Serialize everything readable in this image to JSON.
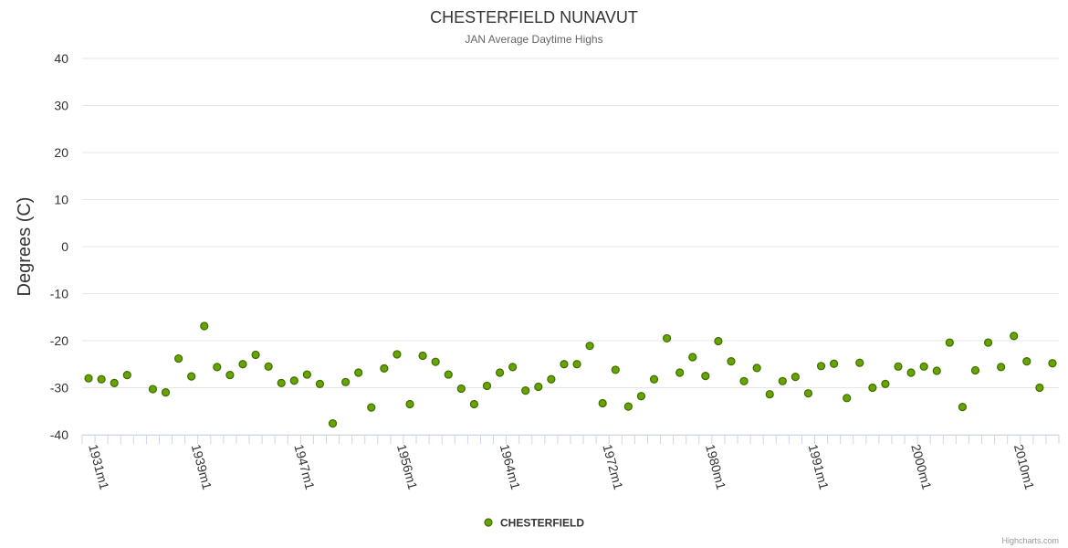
{
  "chart_data": {
    "type": "scatter",
    "title": "CHESTERFIELD NUNAVUT",
    "subtitle": "JAN Average Daytime Highs",
    "xlabel": "",
    "ylabel": "Degrees (C)",
    "ylim": [
      -40,
      40
    ],
    "yticks": [
      -40,
      -30,
      -20,
      -10,
      0,
      10,
      20,
      30,
      40
    ],
    "grid": true,
    "legend_position": "bottom-center",
    "credit": "Highcharts.com",
    "x_tick_labels": [
      {
        "label": "1931m1",
        "index": 0
      },
      {
        "label": "1939m1",
        "index": 8
      },
      {
        "label": "1947m1",
        "index": 16
      },
      {
        "label": "1956m1",
        "index": 24
      },
      {
        "label": "1964m1",
        "index": 32
      },
      {
        "label": "1972m1",
        "index": 40
      },
      {
        "label": "1980m1",
        "index": 48
      },
      {
        "label": "1991m1",
        "index": 56
      },
      {
        "label": "2000m1",
        "index": 64
      },
      {
        "label": "2010m1",
        "index": 72
      }
    ],
    "category_count": 76,
    "series": [
      {
        "name": "CHESTERFIELD",
        "color": "#66a500",
        "border_color": "#3d6b00",
        "points": [
          [
            0,
            -28.0
          ],
          [
            1,
            -28.2
          ],
          [
            2,
            -29.0
          ],
          [
            3,
            -27.3
          ],
          [
            5,
            -30.3
          ],
          [
            6,
            -31.0
          ],
          [
            7,
            -23.8
          ],
          [
            8,
            -27.6
          ],
          [
            9,
            -16.9
          ],
          [
            10,
            -25.6
          ],
          [
            11,
            -27.3
          ],
          [
            12,
            -25.0
          ],
          [
            13,
            -23.0
          ],
          [
            14,
            -25.5
          ],
          [
            15,
            -29.0
          ],
          [
            16,
            -28.5
          ],
          [
            17,
            -27.2
          ],
          [
            18,
            -29.2
          ],
          [
            19,
            -37.6
          ],
          [
            20,
            -28.8
          ],
          [
            21,
            -26.8
          ],
          [
            22,
            -34.2
          ],
          [
            23,
            -25.9
          ],
          [
            24,
            -22.9
          ],
          [
            25,
            -33.5
          ],
          [
            26,
            -23.2
          ],
          [
            27,
            -24.5
          ],
          [
            28,
            -27.2
          ],
          [
            29,
            -30.2
          ],
          [
            30,
            -33.5
          ],
          [
            31,
            -29.6
          ],
          [
            32,
            -26.8
          ],
          [
            33,
            -25.6
          ],
          [
            34,
            -30.6
          ],
          [
            35,
            -29.8
          ],
          [
            36,
            -28.2
          ],
          [
            37,
            -25.0
          ],
          [
            38,
            -25.0
          ],
          [
            39,
            -21.1
          ],
          [
            40,
            -33.3
          ],
          [
            41,
            -26.2
          ],
          [
            42,
            -34.0
          ],
          [
            43,
            -31.8
          ],
          [
            44,
            -28.2
          ],
          [
            45,
            -19.5
          ],
          [
            46,
            -26.8
          ],
          [
            47,
            -23.5
          ],
          [
            48,
            -27.5
          ],
          [
            49,
            -20.1
          ],
          [
            50,
            -24.4
          ],
          [
            51,
            -28.6
          ],
          [
            52,
            -25.8
          ],
          [
            53,
            -31.4
          ],
          [
            54,
            -28.6
          ],
          [
            55,
            -27.7
          ],
          [
            56,
            -31.2
          ],
          [
            57,
            -25.4
          ],
          [
            58,
            -24.9
          ],
          [
            59,
            -32.2
          ],
          [
            60,
            -24.7
          ],
          [
            61,
            -30.0
          ],
          [
            62,
            -29.2
          ],
          [
            63,
            -25.5
          ],
          [
            64,
            -26.8
          ],
          [
            65,
            -25.5
          ],
          [
            66,
            -26.4
          ],
          [
            67,
            -20.4
          ],
          [
            68,
            -34.1
          ],
          [
            69,
            -26.3
          ],
          [
            70,
            -20.4
          ],
          [
            71,
            -25.6
          ],
          [
            72,
            -19.0
          ],
          [
            73,
            -24.4
          ],
          [
            74,
            -30.0
          ],
          [
            75,
            -24.8
          ]
        ]
      }
    ]
  }
}
